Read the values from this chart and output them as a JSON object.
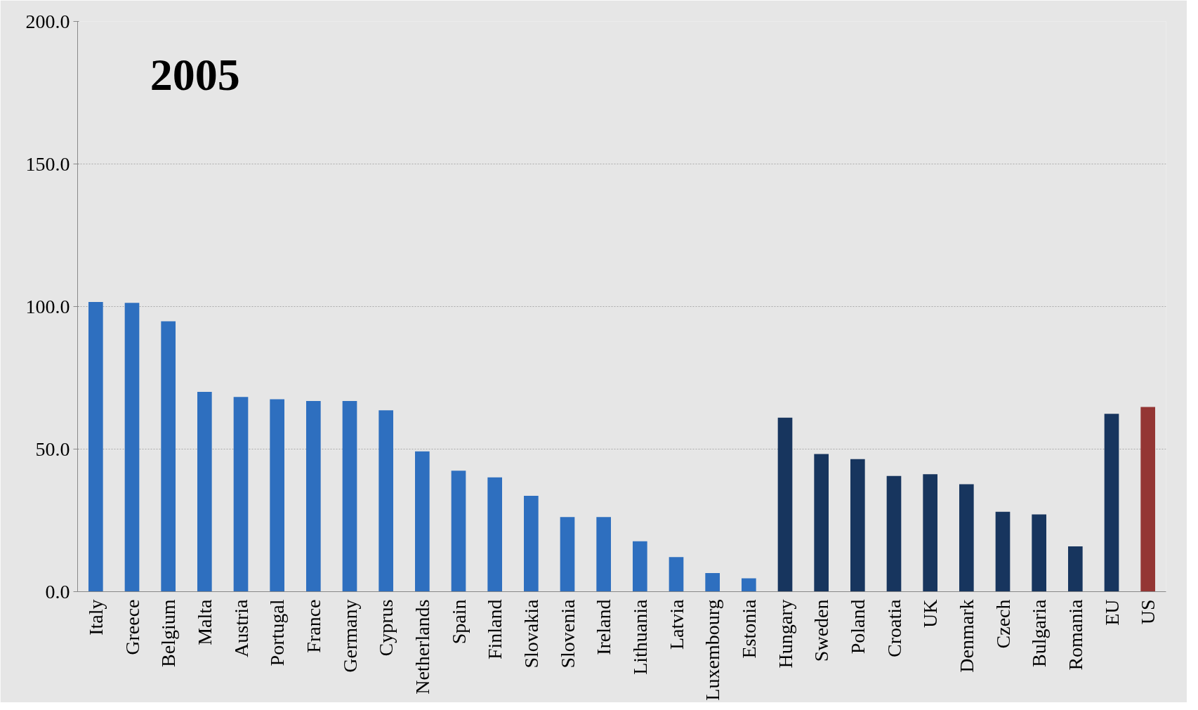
{
  "chart_data": {
    "type": "bar",
    "title": "2005",
    "categories": [
      "Italy",
      "Greece",
      "Belgium",
      "Malta",
      "Austria",
      "Portugal",
      "France",
      "Germany",
      "Cyprus",
      "Netherlands",
      "Spain",
      "Finland",
      "Slovakia",
      "Slovenia",
      "Ireland",
      "Lithuania",
      "Latvia",
      "Luxembourg",
      "Estonia",
      "Hungary",
      "Sweden",
      "Poland",
      "Croatia",
      "UK",
      "Denmark",
      "Czech",
      "Bulgaria",
      "Romania",
      "EU",
      "US"
    ],
    "values": [
      101.6,
      101.3,
      94.8,
      70.1,
      68.3,
      67.5,
      66.9,
      66.9,
      63.6,
      49.2,
      42.4,
      40.1,
      33.6,
      26.2,
      26.2,
      17.7,
      12.1,
      6.5,
      4.7,
      61.0,
      48.3,
      46.5,
      40.6,
      41.2,
      37.7,
      28.0,
      27.1,
      15.9,
      62.4,
      64.8
    ],
    "colors": [
      "#2e6fbf",
      "#2e6fbf",
      "#2e6fbf",
      "#2e6fbf",
      "#2e6fbf",
      "#2e6fbf",
      "#2e6fbf",
      "#2e6fbf",
      "#2e6fbf",
      "#2e6fbf",
      "#2e6fbf",
      "#2e6fbf",
      "#2e6fbf",
      "#2e6fbf",
      "#2e6fbf",
      "#2e6fbf",
      "#2e6fbf",
      "#2e6fbf",
      "#2e6fbf",
      "#17355e",
      "#17355e",
      "#17355e",
      "#17355e",
      "#17355e",
      "#17355e",
      "#17355e",
      "#17355e",
      "#17355e",
      "#17355e",
      "#943634"
    ],
    "ylim": [
      0,
      200
    ],
    "yticks": [
      {
        "value": 0,
        "label": "0.0"
      },
      {
        "value": 50,
        "label": "50.0"
      },
      {
        "value": 100,
        "label": "100.0"
      },
      {
        "value": 150,
        "label": "150.0"
      },
      {
        "value": 200,
        "label": "200.0"
      }
    ],
    "grid": "y"
  }
}
